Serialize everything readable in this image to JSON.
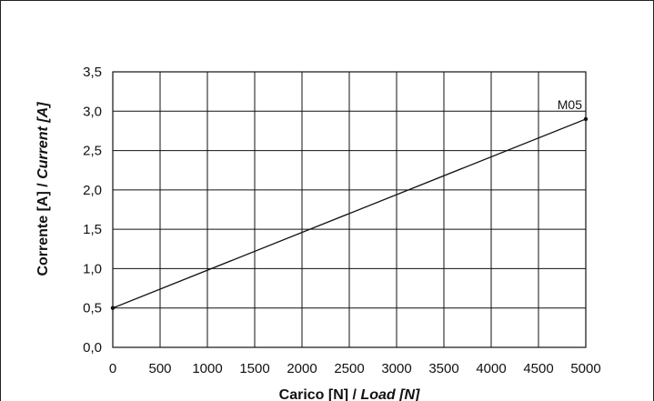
{
  "chart_data": {
    "type": "line",
    "xlabel_main": "Carico [N] / ",
    "xlabel_italic": "Load [N]",
    "ylabel_main": "Corrente [A] / ",
    "ylabel_italic": "Current [A]",
    "xlim": [
      0,
      5000
    ],
    "ylim": [
      0,
      3.5
    ],
    "x_ticks": [
      "0",
      "500",
      "1000",
      "1500",
      "2000",
      "2500",
      "3000",
      "3500",
      "4000",
      "4500",
      "5000"
    ],
    "y_ticks": [
      "0,0",
      "0,5",
      "1,0",
      "1,5",
      "2,0",
      "2,5",
      "3,0",
      "3,5"
    ],
    "grid": true,
    "series": [
      {
        "name": "M05",
        "x": [
          0,
          5000
        ],
        "y": [
          0.5,
          2.9
        ]
      }
    ]
  }
}
